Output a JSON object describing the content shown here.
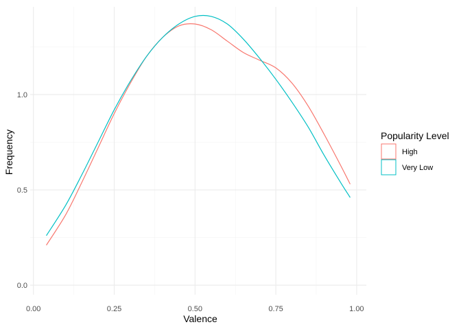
{
  "chart_data": {
    "type": "line",
    "xlabel": "Valence",
    "ylabel": "Frequency",
    "xlim": [
      -0.01,
      1.03
    ],
    "ylim": [
      -0.05,
      1.46
    ],
    "x_ticks": [
      0.0,
      0.25,
      0.5,
      0.75,
      1.0
    ],
    "x_tick_labels": [
      "0.00",
      "0.25",
      "0.50",
      "0.75",
      "1.00"
    ],
    "y_ticks": [
      0.0,
      0.5,
      1.0
    ],
    "y_tick_labels": [
      "0.0",
      "0.5",
      "1.0"
    ],
    "grid": true,
    "legend": {
      "title": "Popularity Level",
      "position": "right"
    },
    "series": [
      {
        "name": "High",
        "color": "#F8766D",
        "x": [
          0.04,
          0.1,
          0.15,
          0.2,
          0.25,
          0.3,
          0.35,
          0.4,
          0.45,
          0.5,
          0.55,
          0.6,
          0.65,
          0.7,
          0.75,
          0.8,
          0.85,
          0.9,
          0.95,
          0.98
        ],
        "y": [
          0.21,
          0.37,
          0.54,
          0.72,
          0.9,
          1.06,
          1.2,
          1.3,
          1.36,
          1.37,
          1.34,
          1.28,
          1.22,
          1.18,
          1.14,
          1.06,
          0.94,
          0.79,
          0.63,
          0.53
        ]
      },
      {
        "name": "Very Low",
        "color": "#00BFC4",
        "x": [
          0.04,
          0.1,
          0.15,
          0.2,
          0.25,
          0.3,
          0.35,
          0.4,
          0.45,
          0.5,
          0.55,
          0.6,
          0.65,
          0.7,
          0.75,
          0.8,
          0.85,
          0.9,
          0.95,
          0.98
        ],
        "y": [
          0.26,
          0.42,
          0.58,
          0.75,
          0.92,
          1.07,
          1.2,
          1.3,
          1.37,
          1.41,
          1.41,
          1.37,
          1.29,
          1.19,
          1.08,
          0.96,
          0.83,
          0.68,
          0.54,
          0.46
        ]
      }
    ]
  }
}
